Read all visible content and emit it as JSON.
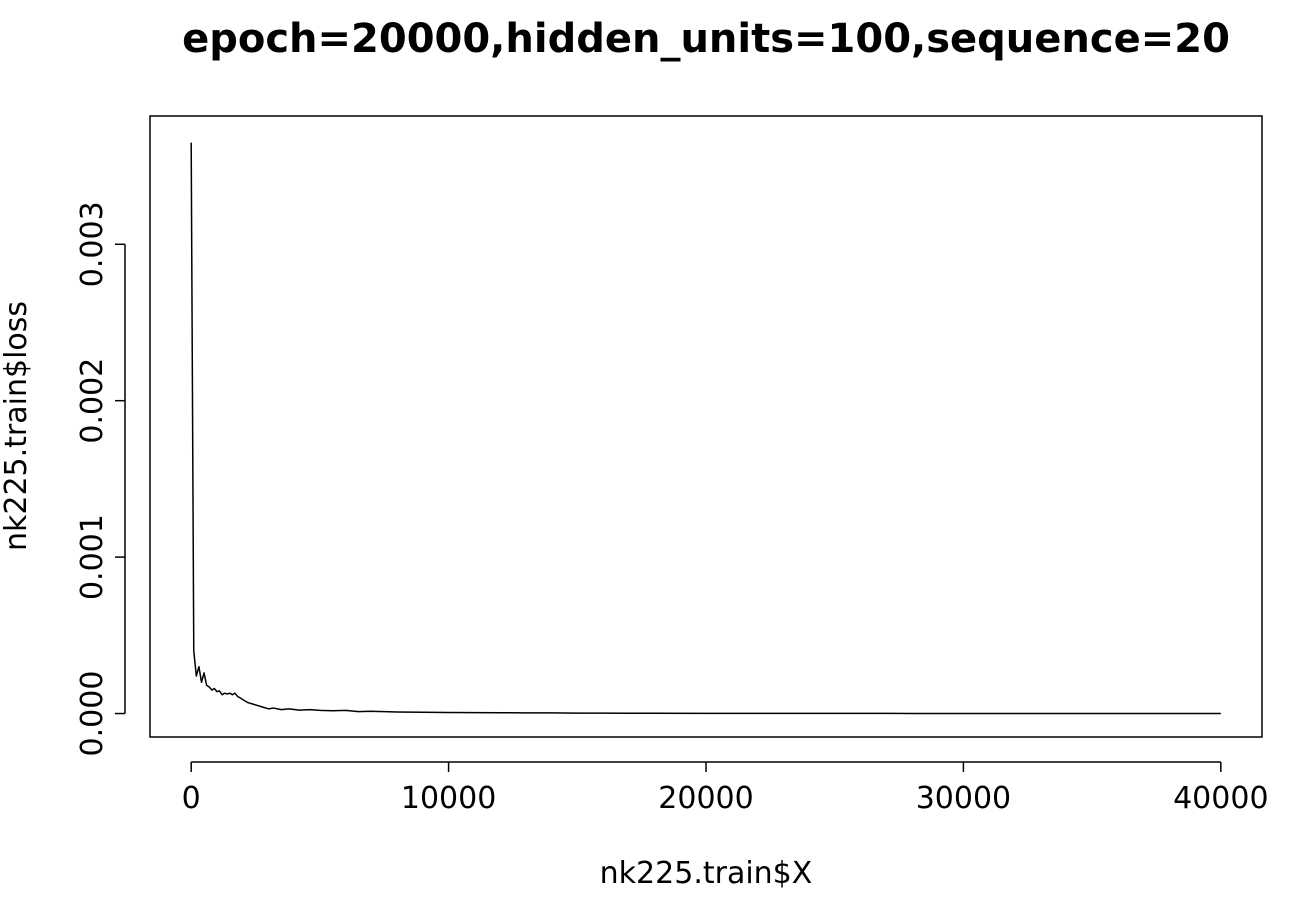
{
  "chart_data": {
    "type": "line",
    "title": "epoch=20000,hidden_units=100,sequence=20",
    "xlabel": "nk225.train$X",
    "ylabel": "nk225.train$loss",
    "xlim": [
      -1600,
      41600
    ],
    "ylim": [
      -0.00015,
      0.00382
    ],
    "x_ticks": [
      0,
      10000,
      20000,
      30000,
      40000
    ],
    "x_tick_labels": [
      "0",
      "10000",
      "20000",
      "30000",
      "40000"
    ],
    "y_ticks": [
      0.0,
      0.001,
      0.002,
      0.003
    ],
    "y_tick_labels": [
      "0.000",
      "0.001",
      "0.002",
      "0.003"
    ],
    "grid": false,
    "legend": "none",
    "series": [
      {
        "color": "#000000",
        "x": [
          0,
          100,
          200,
          300,
          400,
          500,
          600,
          700,
          800,
          900,
          1000,
          1100,
          1200,
          1300,
          1400,
          1500,
          1600,
          1700,
          1800,
          1900,
          2000,
          2200,
          2400,
          2600,
          2800,
          3000,
          3200,
          3500,
          3800,
          4200,
          4600,
          5000,
          5500,
          6000,
          6500,
          7000,
          7500,
          8000,
          9000,
          10000,
          11000,
          12000,
          13000,
          14000,
          15000,
          16000,
          17000,
          18000,
          20000,
          22000,
          24000,
          26000,
          28000,
          30000,
          32000,
          34000,
          36000,
          38000,
          40000
        ],
        "y": [
          0.00365,
          0.0004,
          0.00024,
          0.0003,
          0.0002,
          0.00026,
          0.00018,
          0.00017,
          0.00015,
          0.00016,
          0.00014,
          0.000145,
          0.00012,
          0.00013,
          0.000125,
          0.00013,
          0.00012,
          0.00013,
          0.00011,
          0.0001,
          9e-05,
          7e-05,
          6e-05,
          5e-05,
          4e-05,
          3e-05,
          3.5e-05,
          2.5e-05,
          3e-05,
          2.2e-05,
          2.5e-05,
          2e-05,
          1.8e-05,
          2e-05,
          1.2e-05,
          1.5e-05,
          1.2e-05,
          1e-05,
          8e-06,
          7e-06,
          6e-06,
          5e-06,
          4e-06,
          4e-06,
          3e-06,
          3e-06,
          2e-06,
          2e-06,
          1e-06,
          1e-06,
          1e-06,
          1e-06,
          5e-07,
          5e-07,
          5e-07,
          5e-07,
          3e-07,
          3e-07,
          3e-07
        ]
      }
    ]
  }
}
